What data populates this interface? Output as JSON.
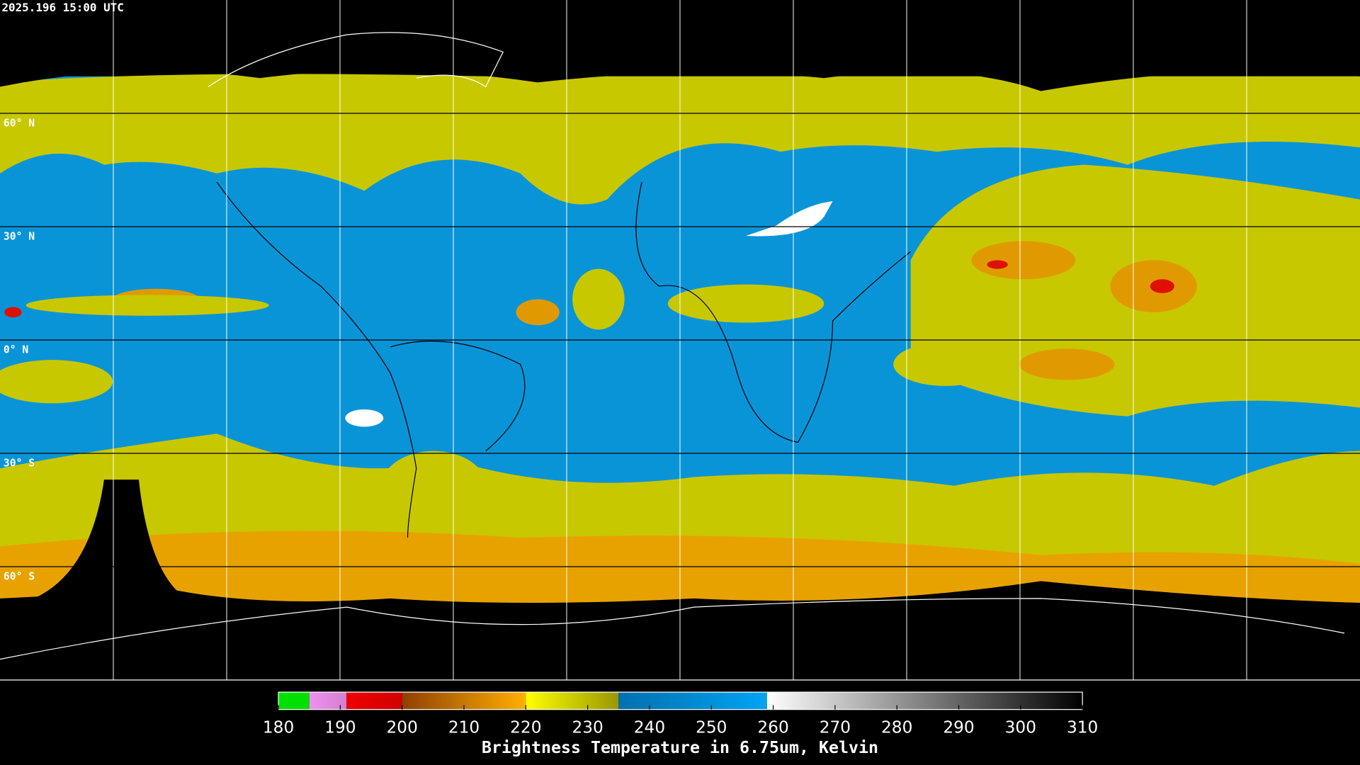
{
  "header": {
    "timestamp": "2025.196 15:00 UTC"
  },
  "latitudes": [
    {
      "value": 60,
      "label": "60° N"
    },
    {
      "value": 30,
      "label": "30° N"
    },
    {
      "value": 0,
      "label": "0° N"
    },
    {
      "value": -30,
      "label": "30° S"
    },
    {
      "value": -60,
      "label": "60° S"
    }
  ],
  "colorbar": {
    "title": "Brightness Temperature in 6.75um, Kelvin",
    "range": [
      180,
      310
    ],
    "ticks": [
      180,
      190,
      200,
      210,
      220,
      230,
      240,
      250,
      260,
      270,
      280,
      290,
      300,
      310
    ],
    "stops": [
      {
        "from": 180,
        "to": 185,
        "color": "#00e000",
        "color_end": "#00e000"
      },
      {
        "from": 185,
        "to": 191,
        "color": "#f090f0",
        "color_end": "#d080d0"
      },
      {
        "from": 191,
        "to": 200,
        "color": "#f00000",
        "color_end": "#d00000"
      },
      {
        "from": 200,
        "to": 220,
        "color": "#904000",
        "color_end": "#ffb000"
      },
      {
        "from": 220,
        "to": 235,
        "color": "#ffff00",
        "color_end": "#989800"
      },
      {
        "from": 235,
        "to": 259,
        "color": "#0070b0",
        "color_end": "#00a4f4"
      },
      {
        "from": 259,
        "to": 310,
        "color": "#ffffff",
        "color_end": "#000000"
      }
    ]
  }
}
